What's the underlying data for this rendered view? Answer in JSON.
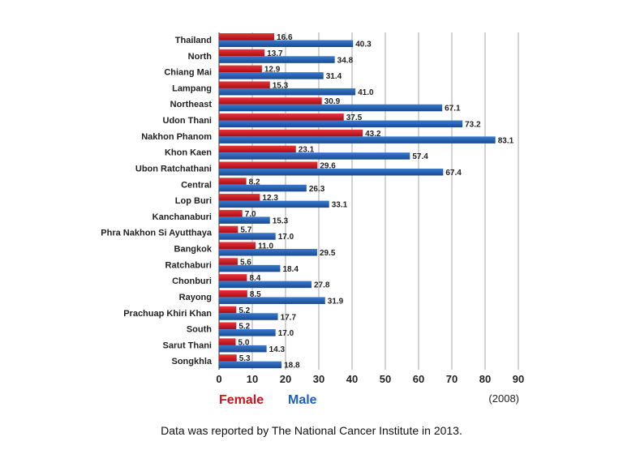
{
  "chart_data": {
    "type": "bar",
    "orientation": "horizontal",
    "categories": [
      "Thailand",
      "North",
      "Chiang Mai",
      "Lampang",
      "Northeast",
      "Udon Thani",
      "Nakhon Phanom",
      "Khon Kaen",
      "Ubon Ratchathani",
      "Central",
      "Lop Buri",
      "Kanchanaburi",
      "Phra Nakhon Si Ayutthaya",
      "Bangkok",
      "Ratchaburi",
      "Chonburi",
      "Rayong",
      "Prachuap Khiri Khan",
      "South",
      "Sarut Thani",
      "Songkhla"
    ],
    "series": [
      {
        "name": "Female",
        "color": "#d0121b",
        "values": [
          16.6,
          13.7,
          12.9,
          15.3,
          30.9,
          37.5,
          43.2,
          23.1,
          29.6,
          8.2,
          12.3,
          7.0,
          5.7,
          11.0,
          5.6,
          8.4,
          8.5,
          5.2,
          5.2,
          5.0,
          5.3
        ]
      },
      {
        "name": "Male",
        "color": "#1f5fb5",
        "values": [
          40.3,
          34.8,
          31.4,
          41.0,
          67.1,
          73.2,
          83.1,
          57.4,
          67.4,
          26.3,
          33.1,
          15.3,
          17.0,
          29.5,
          18.4,
          27.8,
          31.9,
          17.7,
          17.0,
          14.3,
          18.8
        ]
      }
    ],
    "xlim": [
      0,
      90
    ],
    "xticks": [
      0,
      10,
      20,
      30,
      40,
      50,
      60,
      70,
      80,
      90
    ],
    "grid": true,
    "legend": "bottom-left",
    "data_labels": true,
    "note": "(2008)"
  },
  "footer": "Data was reported by The National Cancer Institute in 2013."
}
